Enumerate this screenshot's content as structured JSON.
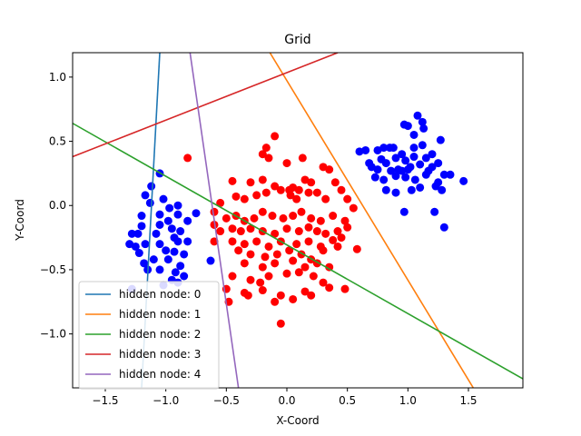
{
  "chart_data": {
    "type": "scatter",
    "title": "Grid",
    "xlabel": "X-Coord",
    "ylabel": "Y-Coord",
    "xlim": [
      -1.77,
      1.95
    ],
    "ylim": [
      -1.42,
      1.19
    ],
    "xticks": [
      -1.5,
      -1.0,
      -0.5,
      0.0,
      0.5,
      1.0,
      1.5
    ],
    "xtick_labels": [
      "−1.5",
      "−1.0",
      "−0.5",
      "0.0",
      "0.5",
      "1.0",
      "1.5"
    ],
    "yticks": [
      -1.0,
      -0.5,
      0.0,
      0.5,
      1.0
    ],
    "ytick_labels": [
      "−1.0",
      "−0.5",
      "0.0",
      "0.5",
      "1.0"
    ],
    "grid": false,
    "legend_position": "lower-left",
    "series": [
      {
        "color": "#0000ff",
        "points": [
          [
            -1.05,
            0.25
          ],
          [
            -1.12,
            0.15
          ],
          [
            -1.17,
            0.08
          ],
          [
            -1.13,
            0.02
          ],
          [
            -1.02,
            0.05
          ],
          [
            -0.9,
            0.0
          ],
          [
            -1.2,
            -0.08
          ],
          [
            -0.97,
            -0.02
          ],
          [
            -0.9,
            -0.07
          ],
          [
            -1.05,
            -0.15
          ],
          [
            -0.98,
            -0.12
          ],
          [
            -0.82,
            -0.12
          ],
          [
            -0.75,
            -0.06
          ],
          [
            -1.2,
            -0.16
          ],
          [
            -1.23,
            -0.22
          ],
          [
            -1.28,
            -0.22
          ],
          [
            -1.08,
            -0.22
          ],
          [
            -0.95,
            -0.18
          ],
          [
            -0.88,
            -0.2
          ],
          [
            -1.3,
            -0.3
          ],
          [
            -1.25,
            -0.32
          ],
          [
            -1.17,
            -0.3
          ],
          [
            -1.05,
            -0.3
          ],
          [
            -0.9,
            -0.28
          ],
          [
            -0.82,
            -0.28
          ],
          [
            -1.22,
            -0.37
          ],
          [
            -1.0,
            -0.35
          ],
          [
            -0.93,
            -0.36
          ],
          [
            -0.85,
            -0.38
          ],
          [
            -1.18,
            -0.45
          ],
          [
            -1.1,
            -0.42
          ],
          [
            -0.98,
            -0.42
          ],
          [
            -0.88,
            -0.47
          ],
          [
            -1.15,
            -0.5
          ],
          [
            -1.05,
            -0.5
          ],
          [
            -0.92,
            -0.52
          ],
          [
            -0.85,
            -0.55
          ],
          [
            -0.95,
            -0.58
          ],
          [
            -1.02,
            -0.62
          ],
          [
            -0.9,
            -0.6
          ],
          [
            -1.28,
            -0.65
          ],
          [
            -0.63,
            -0.43
          ],
          [
            -1.05,
            -0.07
          ],
          [
            -0.93,
            -0.25
          ],
          [
            0.75,
            0.43
          ],
          [
            0.8,
            0.45
          ],
          [
            0.85,
            0.45
          ],
          [
            0.95,
            0.4
          ],
          [
            0.97,
            0.63
          ],
          [
            1.0,
            0.62
          ],
          [
            1.08,
            0.7
          ],
          [
            1.12,
            0.65
          ],
          [
            1.13,
            0.6
          ],
          [
            1.05,
            0.55
          ],
          [
            1.12,
            0.47
          ],
          [
            1.27,
            0.51
          ],
          [
            0.6,
            0.42
          ],
          [
            0.65,
            0.43
          ],
          [
            0.78,
            0.36
          ],
          [
            0.82,
            0.33
          ],
          [
            0.9,
            0.37
          ],
          [
            0.98,
            0.35
          ],
          [
            1.05,
            0.38
          ],
          [
            1.15,
            0.37
          ],
          [
            1.2,
            0.4
          ],
          [
            0.7,
            0.3
          ],
          [
            0.75,
            0.28
          ],
          [
            0.86,
            0.27
          ],
          [
            0.95,
            0.27
          ],
          [
            1.02,
            0.3
          ],
          [
            1.1,
            0.32
          ],
          [
            1.2,
            0.3
          ],
          [
            1.25,
            0.33
          ],
          [
            0.73,
            0.22
          ],
          [
            0.8,
            0.2
          ],
          [
            0.9,
            0.23
          ],
          [
            0.98,
            0.22
          ],
          [
            1.06,
            0.2
          ],
          [
            1.15,
            0.24
          ],
          [
            1.25,
            0.18
          ],
          [
            1.3,
            0.24
          ],
          [
            1.35,
            0.24
          ],
          [
            1.46,
            0.19
          ],
          [
            0.82,
            0.12
          ],
          [
            0.9,
            0.1
          ],
          [
            1.03,
            0.12
          ],
          [
            1.1,
            0.14
          ],
          [
            1.23,
            0.15
          ],
          [
            1.28,
            0.12
          ],
          [
            0.97,
            -0.05
          ],
          [
            1.22,
            -0.05
          ],
          [
            1.3,
            -0.17
          ],
          [
            0.88,
            0.45
          ],
          [
            1.05,
            0.45
          ],
          [
            0.92,
            0.28
          ],
          [
            1.17,
            0.27
          ],
          [
            0.68,
            0.33
          ],
          [
            1.0,
            0.28
          ]
        ]
      },
      {
        "color": "#ff0000",
        "points": [
          [
            -0.1,
            0.54
          ],
          [
            -0.82,
            0.37
          ],
          [
            -0.17,
            0.45
          ],
          [
            -0.2,
            0.4
          ],
          [
            -0.15,
            0.37
          ],
          [
            0.0,
            0.33
          ],
          [
            0.13,
            0.37
          ],
          [
            -0.45,
            0.19
          ],
          [
            -0.3,
            0.18
          ],
          [
            -0.2,
            0.2
          ],
          [
            -0.1,
            0.15
          ],
          [
            -0.05,
            0.12
          ],
          [
            0.02,
            0.12
          ],
          [
            0.05,
            0.14
          ],
          [
            0.1,
            0.12
          ],
          [
            0.15,
            0.2
          ],
          [
            0.2,
            0.18
          ],
          [
            0.3,
            0.3
          ],
          [
            0.35,
            0.28
          ],
          [
            0.4,
            0.18
          ],
          [
            0.45,
            0.12
          ],
          [
            -0.55,
            0.02
          ],
          [
            -0.42,
            0.07
          ],
          [
            -0.35,
            0.05
          ],
          [
            -0.25,
            0.08
          ],
          [
            -0.17,
            0.1
          ],
          [
            0.03,
            0.08
          ],
          [
            0.08,
            0.05
          ],
          [
            0.18,
            0.1
          ],
          [
            0.25,
            0.1
          ],
          [
            0.32,
            0.05
          ],
          [
            0.5,
            0.05
          ],
          [
            0.55,
            -0.02
          ],
          [
            -0.6,
            -0.05
          ],
          [
            -0.5,
            -0.1
          ],
          [
            -0.42,
            -0.08
          ],
          [
            -0.35,
            -0.12
          ],
          [
            -0.27,
            -0.1
          ],
          [
            -0.2,
            -0.05
          ],
          [
            -0.12,
            -0.08
          ],
          [
            -0.03,
            -0.1
          ],
          [
            0.05,
            -0.08
          ],
          [
            0.12,
            -0.05
          ],
          [
            0.2,
            -0.1
          ],
          [
            0.28,
            -0.12
          ],
          [
            0.38,
            -0.08
          ],
          [
            0.48,
            -0.12
          ],
          [
            -0.55,
            -0.2
          ],
          [
            -0.45,
            -0.18
          ],
          [
            -0.38,
            -0.2
          ],
          [
            -0.3,
            -0.18
          ],
          [
            -0.2,
            -0.2
          ],
          [
            -0.1,
            -0.22
          ],
          [
            0.0,
            -0.18
          ],
          [
            0.1,
            -0.2
          ],
          [
            0.18,
            -0.17
          ],
          [
            0.25,
            -0.2
          ],
          [
            0.32,
            -0.22
          ],
          [
            0.42,
            -0.2
          ],
          [
            0.5,
            -0.17
          ],
          [
            -0.6,
            -0.28
          ],
          [
            -0.45,
            -0.28
          ],
          [
            -0.35,
            -0.3
          ],
          [
            -0.25,
            -0.28
          ],
          [
            -0.15,
            -0.32
          ],
          [
            -0.05,
            -0.28
          ],
          [
            0.08,
            -0.3
          ],
          [
            0.18,
            -0.28
          ],
          [
            0.28,
            -0.32
          ],
          [
            0.38,
            -0.27
          ],
          [
            0.45,
            -0.25
          ],
          [
            0.58,
            -0.34
          ],
          [
            -0.4,
            -0.35
          ],
          [
            -0.3,
            -0.38
          ],
          [
            -0.18,
            -0.4
          ],
          [
            -0.08,
            -0.38
          ],
          [
            0.02,
            -0.35
          ],
          [
            0.12,
            -0.38
          ],
          [
            0.2,
            -0.42
          ],
          [
            0.3,
            -0.35
          ],
          [
            0.42,
            -0.32
          ],
          [
            -0.35,
            -0.45
          ],
          [
            -0.2,
            -0.48
          ],
          [
            -0.1,
            -0.45
          ],
          [
            0.05,
            -0.43
          ],
          [
            0.15,
            -0.48
          ],
          [
            0.25,
            -0.45
          ],
          [
            0.35,
            -0.48
          ],
          [
            -0.45,
            -0.55
          ],
          [
            -0.3,
            -0.58
          ],
          [
            -0.15,
            -0.55
          ],
          [
            0.0,
            -0.53
          ],
          [
            0.1,
            -0.52
          ],
          [
            0.22,
            -0.55
          ],
          [
            0.3,
            -0.6
          ],
          [
            -0.5,
            -0.65
          ],
          [
            -0.35,
            -0.68
          ],
          [
            -0.2,
            -0.66
          ],
          [
            -0.05,
            -0.7
          ],
          [
            0.15,
            -0.67
          ],
          [
            0.35,
            -0.64
          ],
          [
            -0.48,
            -0.75
          ],
          [
            -0.32,
            -0.7
          ],
          [
            -0.1,
            -0.75
          ],
          [
            0.05,
            -0.73
          ],
          [
            0.2,
            -0.7
          ],
          [
            0.48,
            -0.65
          ],
          [
            -0.05,
            -0.92
          ],
          [
            -0.6,
            -0.15
          ],
          [
            -0.22,
            -0.6
          ]
        ]
      }
    ],
    "hidden_nodes": [
      {
        "name": "hidden node: 0",
        "color": "#1f77b4",
        "p1": [
          -1.2,
          -1.42
        ],
        "p2": [
          -1.05,
          1.19
        ]
      },
      {
        "name": "hidden node: 1",
        "color": "#ff7f0e",
        "p1": [
          -0.14,
          1.19
        ],
        "p2": [
          1.54,
          -1.42
        ]
      },
      {
        "name": "hidden node: 2",
        "color": "#2ca02c",
        "p1": [
          -1.77,
          0.64
        ],
        "p2": [
          1.95,
          -1.35
        ]
      },
      {
        "name": "hidden node: 3",
        "color": "#d62728",
        "p1": [
          -1.77,
          0.38
        ],
        "p2": [
          0.42,
          1.19
        ]
      },
      {
        "name": "hidden node: 4",
        "color": "#9467bd",
        "p1": [
          -0.8,
          1.19
        ],
        "p2": [
          -0.4,
          -1.42
        ]
      }
    ]
  }
}
